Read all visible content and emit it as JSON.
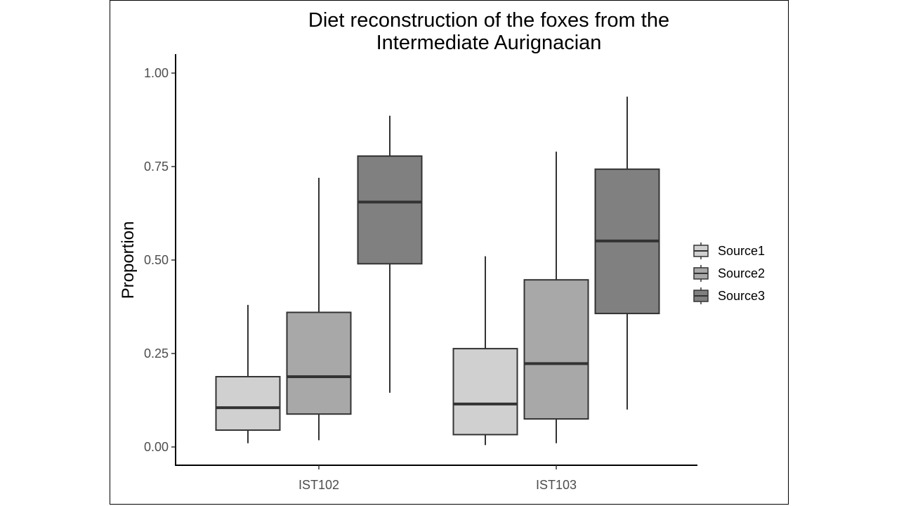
{
  "chart_data": {
    "type": "boxplot",
    "title_lines": [
      "Diet reconstruction of the foxes from the",
      "Intermediate Aurignacian"
    ],
    "xlabel": "",
    "ylabel": "Proportion",
    "ylim": [
      -0.05,
      1.05
    ],
    "yticks": [
      0.0,
      0.25,
      0.5,
      0.75,
      1.0
    ],
    "ytick_labels": [
      "0.00",
      "0.25",
      "0.50",
      "0.75",
      "1.00"
    ],
    "categories": [
      "IST102",
      "IST103"
    ],
    "grid": false,
    "legend_position": "right",
    "series": [
      {
        "name": "Source1",
        "color": "#d0d0d0",
        "boxes": [
          {
            "min": 0.01,
            "q1": 0.045,
            "median": 0.105,
            "q3": 0.188,
            "max": 0.38
          },
          {
            "min": 0.005,
            "q1": 0.033,
            "median": 0.115,
            "q3": 0.263,
            "max": 0.51
          }
        ]
      },
      {
        "name": "Source2",
        "color": "#a8a8a8",
        "boxes": [
          {
            "min": 0.018,
            "q1": 0.088,
            "median": 0.188,
            "q3": 0.36,
            "max": 0.72
          },
          {
            "min": 0.01,
            "q1": 0.075,
            "median": 0.223,
            "q3": 0.447,
            "max": 0.79
          }
        ]
      },
      {
        "name": "Source3",
        "color": "#808080",
        "boxes": [
          {
            "min": 0.145,
            "q1": 0.49,
            "median": 0.655,
            "q3": 0.778,
            "max": 0.886
          },
          {
            "min": 0.1,
            "q1": 0.357,
            "median": 0.551,
            "q3": 0.743,
            "max": 0.937
          }
        ]
      }
    ]
  }
}
